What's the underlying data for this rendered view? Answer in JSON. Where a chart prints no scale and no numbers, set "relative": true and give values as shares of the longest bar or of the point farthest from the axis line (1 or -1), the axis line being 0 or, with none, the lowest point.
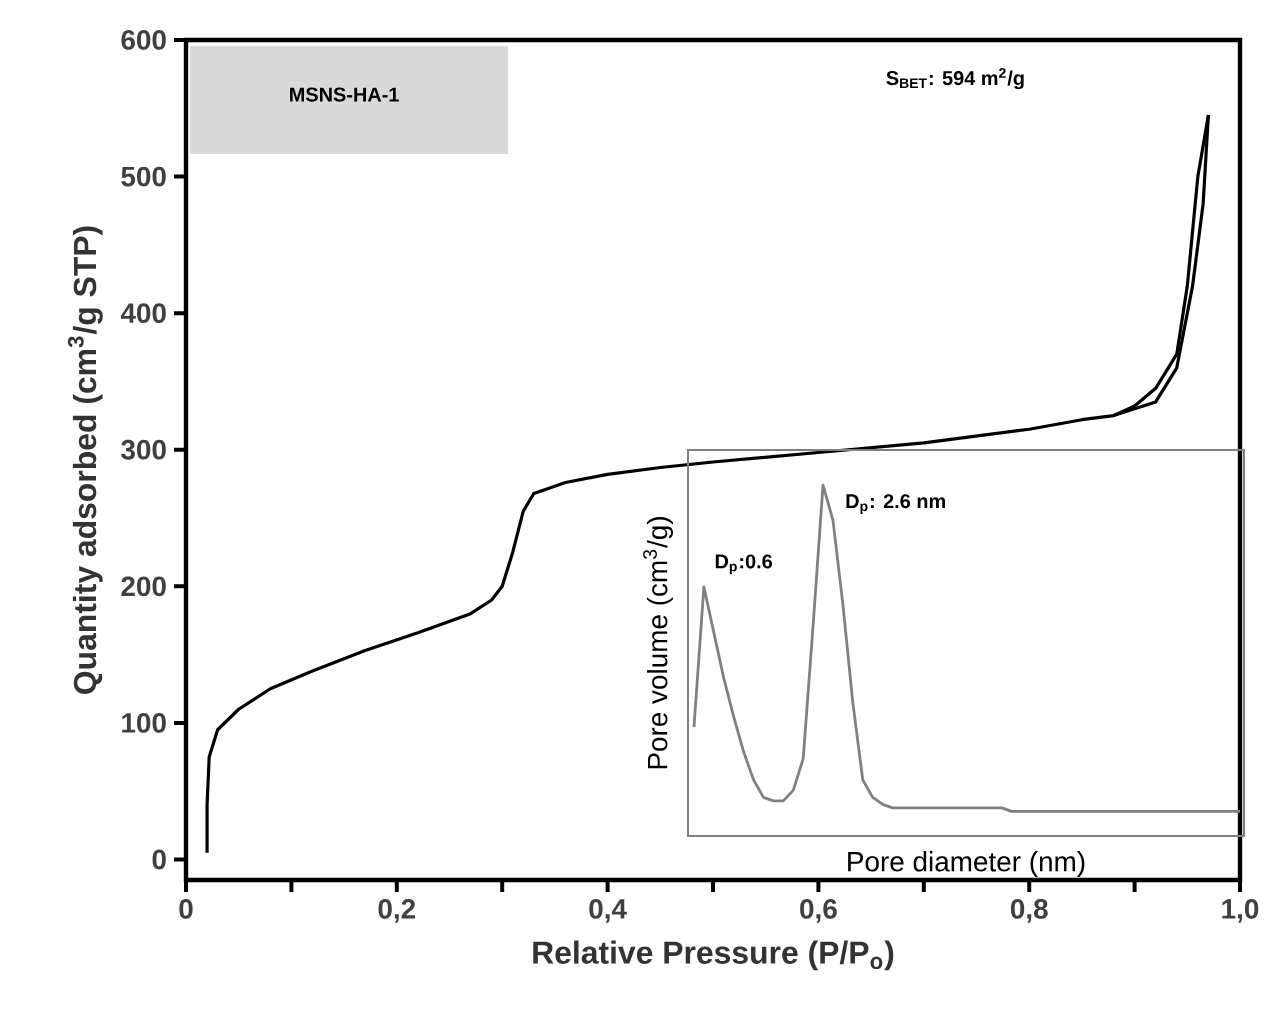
{
  "chart_data": [
    {
      "type": "line",
      "xlabel": "Relative Pressure (P/P$_{o}$)",
      "ylabel": "Quantity adsorbed (cm$^{3}$/g STP)",
      "annotations": [
        "MSNS-HA-1",
        "S$_{BET}$: 594 m$^{2}$/g"
      ],
      "xlim": [
        0,
        1.0
      ],
      "ylim": [
        -15,
        600
      ],
      "xticks": [
        0,
        {
          "value": 0.1,
          "label": null
        },
        {
          "value": 0.2,
          "label": "0,2"
        },
        {
          "value": 0.3,
          "label": null
        },
        {
          "value": 0.4,
          "label": "0,4"
        },
        {
          "value": 0.5,
          "label": null
        },
        {
          "value": 0.6,
          "label": "0,6"
        },
        {
          "value": 0.7,
          "label": null
        },
        {
          "value": 0.8,
          "label": "0,8"
        },
        {
          "value": 0.9,
          "label": null
        },
        {
          "value": 1.0,
          "label": "1,0"
        }
      ],
      "yticks": [
        0,
        100,
        200,
        300,
        400,
        500,
        600
      ],
      "series": [
        {
          "color": "#000000",
          "x": [
            0.02,
            0.02,
            0.022,
            0.03,
            0.05,
            0.08,
            0.12,
            0.17,
            0.22,
            0.27,
            0.29,
            0.3,
            0.31,
            0.32,
            0.33,
            0.36,
            0.4,
            0.45,
            0.5,
            0.6,
            0.7,
            0.8,
            0.85,
            0.88,
            0.92,
            0.94,
            0.955,
            0.965,
            0.97
          ],
          "values": [
            5,
            40,
            75,
            95,
            110,
            125,
            138,
            153,
            166,
            180,
            190,
            200,
            225,
            255,
            268,
            276,
            282,
            287,
            291,
            298,
            305,
            315,
            322,
            325,
            335,
            360,
            420,
            480,
            545
          ]
        },
        {
          "color": "#000000",
          "x": [
            0.97,
            0.96,
            0.95,
            0.94,
            0.92,
            0.9,
            0.88
          ],
          "values": [
            545,
            500,
            420,
            370,
            345,
            332,
            325
          ]
        }
      ]
    },
    {
      "type": "line",
      "relative": true,
      "tick_labels": false,
      "xlabel": "Pore diameter (nm)",
      "ylabel": "Pore volume (cm$^{3}$/g)",
      "annotations": [
        "D$_{p}$:0.6",
        "D$_{p}$: 2.6 nm"
      ],
      "categories": [
        null,
        null,
        null,
        null,
        null,
        null,
        null,
        null,
        null,
        null,
        null,
        null,
        null,
        null,
        null,
        null,
        null,
        null,
        null,
        null,
        null,
        null,
        null,
        null,
        null,
        null,
        null,
        null,
        null,
        null,
        null,
        null,
        null,
        null,
        null,
        null,
        null,
        null,
        null,
        null,
        null,
        null,
        null,
        null,
        null,
        null,
        null,
        null,
        null,
        null,
        null,
        null,
        null,
        null,
        null,
        null
      ],
      "series": [
        {
          "color": "#808080",
          "values": [
            0.31,
            0.71,
            0.58,
            0.45,
            0.34,
            0.24,
            0.16,
            0.11,
            0.1,
            0.1,
            0.13,
            0.22,
            0.6,
            1.0,
            0.9,
            0.66,
            0.38,
            0.16,
            0.11,
            0.09,
            0.08,
            0.08,
            0.08,
            0.08,
            0.08,
            0.08,
            0.08,
            0.08,
            0.08,
            0.08,
            0.08,
            0.08,
            0.07,
            0.07,
            0.07,
            0.07,
            0.07,
            0.07,
            0.07,
            0.07,
            0.07,
            0.07,
            0.07,
            0.07,
            0.07,
            0.07,
            0.07,
            0.07,
            0.07,
            0.07,
            0.07,
            0.07,
            0.07,
            0.07,
            0.07,
            0.07
          ]
        }
      ]
    }
  ]
}
